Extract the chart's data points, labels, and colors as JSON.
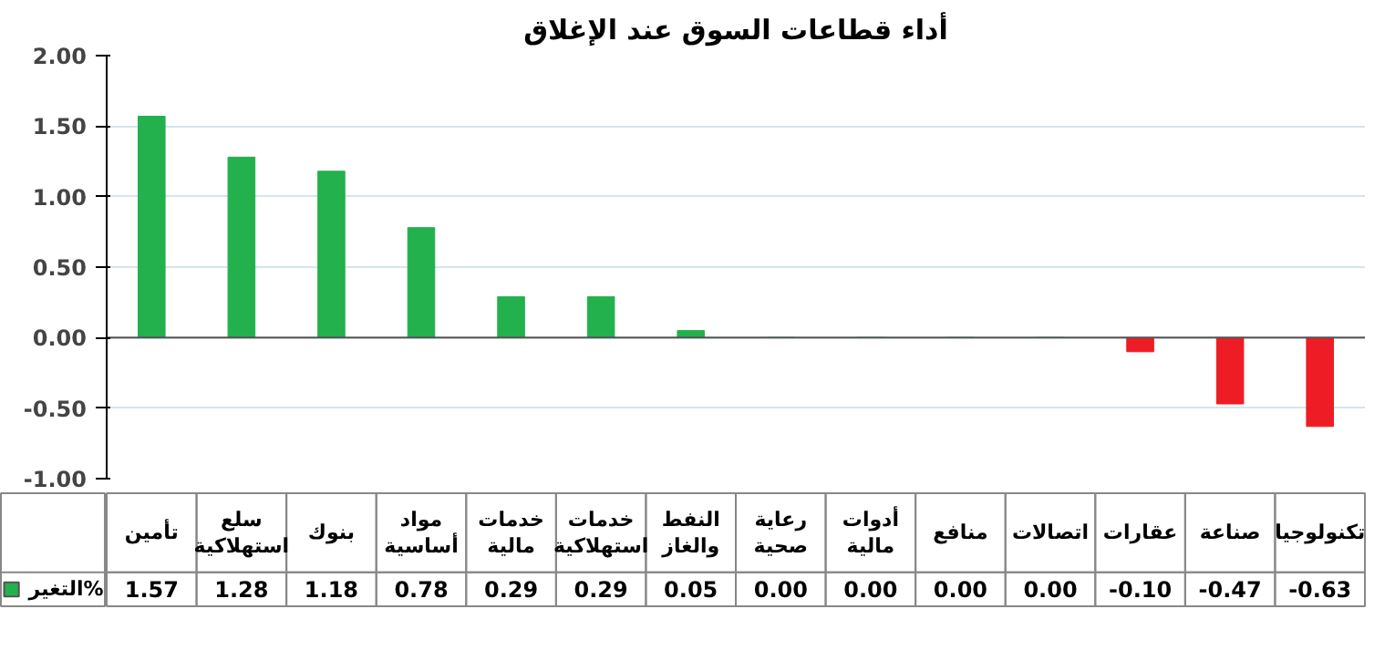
{
  "chart_data": {
    "type": "bar",
    "title": "أداء قطاعات السوق عند الإغلاق",
    "categories": [
      "تأمين",
      "سلع استهلاكية",
      "بنوك",
      "مواد أساسية",
      "خدمات مالية",
      "خدمات استهلاكية",
      "النفط والغاز",
      "رعاية صحية",
      "أدوات مالية",
      "منافع",
      "اتصالات",
      "عقارات",
      "صناعة",
      "تكنولوجيا"
    ],
    "series": [
      {
        "name": "التغير%",
        "color": "#22b14c",
        "values": [
          1.57,
          1.28,
          1.18,
          0.78,
          0.29,
          0.29,
          0.05,
          0.0,
          0.0,
          0.0,
          0.0,
          -0.1,
          -0.47,
          -0.63
        ],
        "colors": [
          "#22b14c",
          "#22b14c",
          "#22b14c",
          "#22b14c",
          "#22b14c",
          "#22b14c",
          "#22b14c",
          "#22b14c",
          "#22b14c",
          "#22b14c",
          "#22b14c",
          "#ee1c24",
          "#ee1c24",
          "#ee1c24"
        ],
        "value_labels": [
          "1.57",
          "1.28",
          "1.18",
          "0.78",
          "0.29",
          "0.29",
          "0.05",
          "0.00",
          "0.00",
          "0.00",
          "0.00",
          "-0.10",
          "-0.47",
          "-0.63"
        ]
      }
    ],
    "ylim": [
      -1.0,
      2.0
    ],
    "yticks": [
      {
        "value": -1,
        "label": "-1.00"
      },
      {
        "value": -0.5,
        "label": "-0.50"
      },
      {
        "value": 0,
        "label": "0.00"
      },
      {
        "value": 0.5,
        "label": "0.50"
      },
      {
        "value": 1,
        "label": "1.00"
      },
      {
        "value": 1.5,
        "label": "1.50"
      },
      {
        "value": 2,
        "label": "2.00"
      }
    ],
    "grid": "y"
  }
}
